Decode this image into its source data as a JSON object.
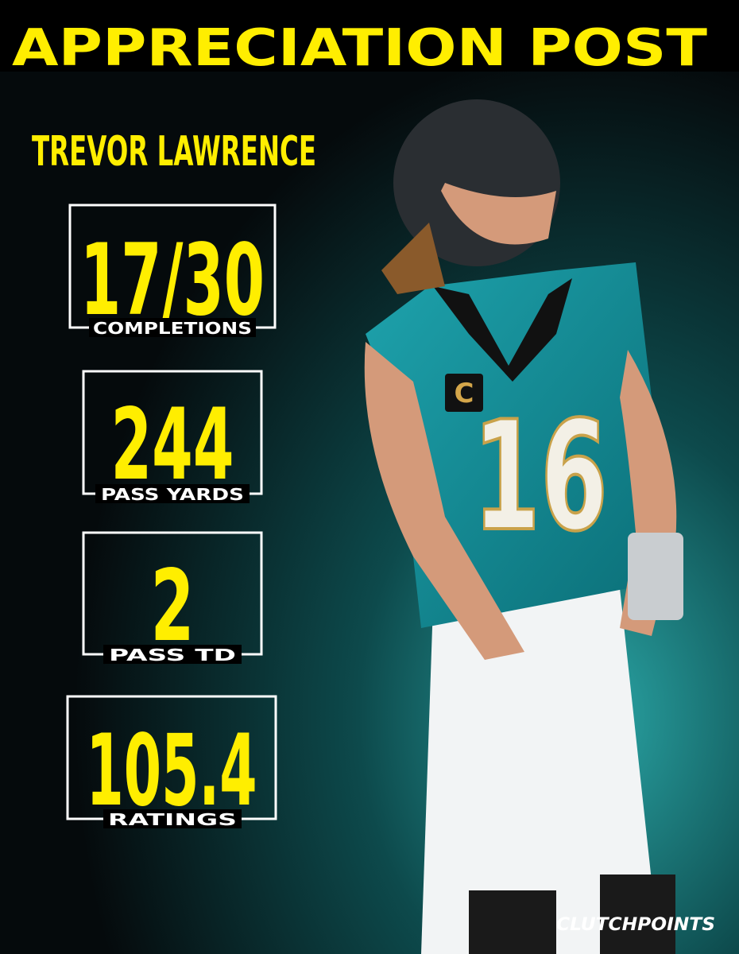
{
  "header": {
    "title": "APPRECIATION POST"
  },
  "player": {
    "name": "TREVOR LAWRENCE",
    "jersey_number": "16",
    "captain_patch": "C"
  },
  "stats": [
    {
      "value": "17/30",
      "label": "COMPLETIONS"
    },
    {
      "value": "244",
      "label": "PASS YARDS"
    },
    {
      "value": "2",
      "label": "PASS TD"
    },
    {
      "value": "105.4",
      "label": "RATINGS"
    }
  ],
  "brand": "CLUTCHPOINTS"
}
